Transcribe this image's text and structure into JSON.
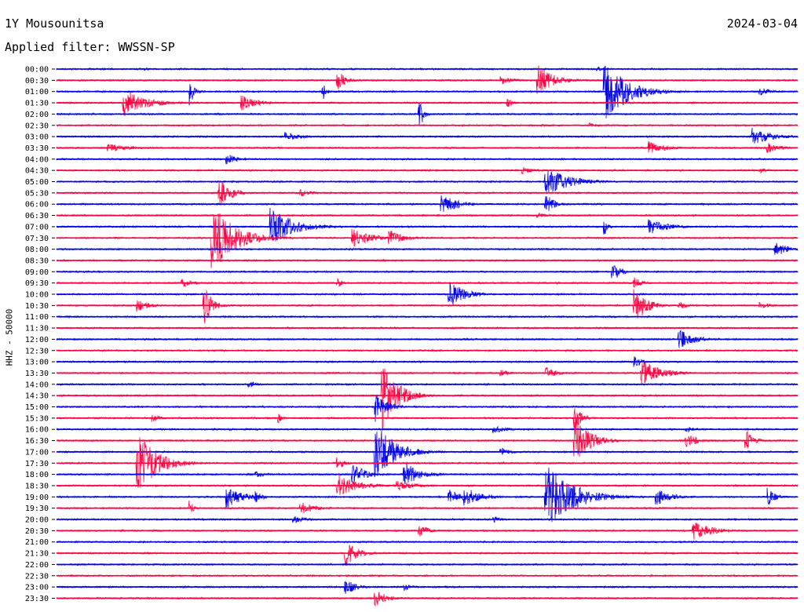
{
  "header": {
    "station": "1Y Mousounitsa",
    "date": "2024-03-04",
    "filter_text": "Applied filter: WWSSN-SP"
  },
  "chart_data": {
    "type": "line",
    "title": "1Y Mousounitsa",
    "ylabel": "HHZ - 50000",
    "colors": [
      "#0000e6",
      "#ff0040"
    ],
    "rows": [
      "00:00",
      "00:30",
      "01:00",
      "01:30",
      "02:00",
      "02:30",
      "03:00",
      "03:30",
      "04:00",
      "04:30",
      "05:00",
      "05:30",
      "06:00",
      "06:30",
      "07:00",
      "07:30",
      "08:00",
      "08:30",
      "09:00",
      "09:30",
      "10:00",
      "10:30",
      "11:00",
      "11:30",
      "12:00",
      "12:30",
      "13:00",
      "13:30",
      "14:00",
      "14:30",
      "15:00",
      "15:30",
      "16:00",
      "16:30",
      "17:00",
      "17:30",
      "18:00",
      "18:30",
      "19:00",
      "19:30",
      "20:00",
      "20:30",
      "21:00",
      "21:30",
      "22:00",
      "22:30",
      "23:00",
      "23:30"
    ],
    "events": [
      {
        "row": 0,
        "x": 0.12,
        "amp": 2,
        "dur": 0.02
      },
      {
        "row": 0,
        "x": 0.73,
        "amp": 3,
        "dur": 0.03
      },
      {
        "row": 1,
        "x": 0.38,
        "amp": 13,
        "dur": 0.02
      },
      {
        "row": 1,
        "x": 0.6,
        "amp": 6,
        "dur": 0.03
      },
      {
        "row": 1,
        "x": 0.65,
        "amp": 20,
        "dur": 0.04
      },
      {
        "row": 2,
        "x": 0.18,
        "amp": 20,
        "dur": 0.01
      },
      {
        "row": 2,
        "x": 0.36,
        "amp": 10,
        "dur": 0.01
      },
      {
        "row": 2,
        "x": 0.74,
        "amp": 40,
        "dur": 0.06
      },
      {
        "row": 2,
        "x": 0.95,
        "amp": 5,
        "dur": 0.03
      },
      {
        "row": 3,
        "x": 0.09,
        "amp": 18,
        "dur": 0.06
      },
      {
        "row": 3,
        "x": 0.25,
        "amp": 10,
        "dur": 0.04
      },
      {
        "row": 3,
        "x": 0.61,
        "amp": 7,
        "dur": 0.01
      },
      {
        "row": 4,
        "x": 0.49,
        "amp": 22,
        "dur": 0.01
      },
      {
        "row": 5,
        "x": 0.72,
        "amp": 4,
        "dur": 0.02
      },
      {
        "row": 6,
        "x": 0.31,
        "amp": 6,
        "dur": 0.04
      },
      {
        "row": 6,
        "x": 0.94,
        "amp": 12,
        "dur": 0.05
      },
      {
        "row": 7,
        "x": 0.07,
        "amp": 5,
        "dur": 0.06
      },
      {
        "row": 7,
        "x": 0.8,
        "amp": 9,
        "dur": 0.04
      },
      {
        "row": 7,
        "x": 0.96,
        "amp": 7,
        "dur": 0.03
      },
      {
        "row": 8,
        "x": 0.23,
        "amp": 7,
        "dur": 0.03
      },
      {
        "row": 9,
        "x": 0.63,
        "amp": 5,
        "dur": 0.03
      },
      {
        "row": 9,
        "x": 0.95,
        "amp": 4,
        "dur": 0.02
      },
      {
        "row": 10,
        "x": 0.66,
        "amp": 20,
        "dur": 0.06
      },
      {
        "row": 11,
        "x": 0.22,
        "amp": 18,
        "dur": 0.03
      },
      {
        "row": 11,
        "x": 0.33,
        "amp": 5,
        "dur": 0.03
      },
      {
        "row": 12,
        "x": 0.52,
        "amp": 14,
        "dur": 0.04
      },
      {
        "row": 12,
        "x": 0.66,
        "amp": 15,
        "dur": 0.02
      },
      {
        "row": 13,
        "x": 0.65,
        "amp": 4,
        "dur": 0.02
      },
      {
        "row": 14,
        "x": 0.29,
        "amp": 25,
        "dur": 0.06
      },
      {
        "row": 14,
        "x": 0.74,
        "amp": 10,
        "dur": 0.01
      },
      {
        "row": 14,
        "x": 0.8,
        "amp": 10,
        "dur": 0.05
      },
      {
        "row": 15,
        "x": 0.21,
        "amp": 45,
        "dur": 0.06
      },
      {
        "row": 15,
        "x": 0.4,
        "amp": 12,
        "dur": 0.05
      },
      {
        "row": 15,
        "x": 0.45,
        "amp": 10,
        "dur": 0.04
      },
      {
        "row": 16,
        "x": 0.97,
        "amp": 9,
        "dur": 0.04
      },
      {
        "row": 18,
        "x": 0.75,
        "amp": 15,
        "dur": 0.02
      },
      {
        "row": 19,
        "x": 0.17,
        "amp": 6,
        "dur": 0.03
      },
      {
        "row": 19,
        "x": 0.38,
        "amp": 6,
        "dur": 0.01
      },
      {
        "row": 19,
        "x": 0.78,
        "amp": 8,
        "dur": 0.02
      },
      {
        "row": 20,
        "x": 0.53,
        "amp": 18,
        "dur": 0.04
      },
      {
        "row": 21,
        "x": 0.11,
        "amp": 8,
        "dur": 0.03
      },
      {
        "row": 21,
        "x": 0.2,
        "amp": 25,
        "dur": 0.02
      },
      {
        "row": 21,
        "x": 0.78,
        "amp": 25,
        "dur": 0.03
      },
      {
        "row": 21,
        "x": 0.84,
        "amp": 5,
        "dur": 0.03
      },
      {
        "row": 21,
        "x": 0.95,
        "amp": 4,
        "dur": 0.03
      },
      {
        "row": 24,
        "x": 0.84,
        "amp": 14,
        "dur": 0.04
      },
      {
        "row": 26,
        "x": 0.78,
        "amp": 10,
        "dur": 0.02
      },
      {
        "row": 27,
        "x": 0.6,
        "amp": 5,
        "dur": 0.02
      },
      {
        "row": 27,
        "x": 0.66,
        "amp": 8,
        "dur": 0.03
      },
      {
        "row": 27,
        "x": 0.79,
        "amp": 16,
        "dur": 0.05
      },
      {
        "row": 28,
        "x": 0.26,
        "amp": 5,
        "dur": 0.02
      },
      {
        "row": 29,
        "x": 0.44,
        "amp": 45,
        "dur": 0.04
      },
      {
        "row": 30,
        "x": 0.43,
        "amp": 20,
        "dur": 0.03
      },
      {
        "row": 31,
        "x": 0.13,
        "amp": 5,
        "dur": 0.02
      },
      {
        "row": 31,
        "x": 0.3,
        "amp": 6,
        "dur": 0.01
      },
      {
        "row": 31,
        "x": 0.7,
        "amp": 15,
        "dur": 0.02
      },
      {
        "row": 32,
        "x": 0.59,
        "amp": 6,
        "dur": 0.03
      },
      {
        "row": 32,
        "x": 0.85,
        "amp": 4,
        "dur": 0.03
      },
      {
        "row": 33,
        "x": 0.7,
        "amp": 30,
        "dur": 0.04
      },
      {
        "row": 33,
        "x": 0.85,
        "amp": 10,
        "dur": 0.03
      },
      {
        "row": 33,
        "x": 0.93,
        "amp": 15,
        "dur": 0.02
      },
      {
        "row": 34,
        "x": 0.43,
        "amp": 40,
        "dur": 0.05
      },
      {
        "row": 34,
        "x": 0.6,
        "amp": 5,
        "dur": 0.03
      },
      {
        "row": 35,
        "x": 0.11,
        "amp": 40,
        "dur": 0.05
      },
      {
        "row": 35,
        "x": 0.38,
        "amp": 8,
        "dur": 0.02
      },
      {
        "row": 36,
        "x": 0.27,
        "amp": 5,
        "dur": 0.03
      },
      {
        "row": 36,
        "x": 0.4,
        "amp": 16,
        "dur": 0.03
      },
      {
        "row": 36,
        "x": 0.47,
        "amp": 16,
        "dur": 0.04
      },
      {
        "row": 37,
        "x": 0.38,
        "amp": 16,
        "dur": 0.05
      },
      {
        "row": 37,
        "x": 0.46,
        "amp": 7,
        "dur": 0.05
      },
      {
        "row": 38,
        "x": 0.23,
        "amp": 15,
        "dur": 0.04
      },
      {
        "row": 38,
        "x": 0.27,
        "amp": 7,
        "dur": 0.02
      },
      {
        "row": 38,
        "x": 0.53,
        "amp": 10,
        "dur": 0.03
      },
      {
        "row": 38,
        "x": 0.55,
        "amp": 14,
        "dur": 0.04
      },
      {
        "row": 38,
        "x": 0.66,
        "amp": 45,
        "dur": 0.07
      },
      {
        "row": 38,
        "x": 0.81,
        "amp": 10,
        "dur": 0.04
      },
      {
        "row": 38,
        "x": 0.96,
        "amp": 12,
        "dur": 0.02
      },
      {
        "row": 39,
        "x": 0.18,
        "amp": 10,
        "dur": 0.01
      },
      {
        "row": 39,
        "x": 0.33,
        "amp": 8,
        "dur": 0.04
      },
      {
        "row": 40,
        "x": 0.32,
        "amp": 6,
        "dur": 0.03
      },
      {
        "row": 40,
        "x": 0.59,
        "amp": 5,
        "dur": 0.02
      },
      {
        "row": 41,
        "x": 0.49,
        "amp": 10,
        "dur": 0.02
      },
      {
        "row": 41,
        "x": 0.86,
        "amp": 12,
        "dur": 0.05
      },
      {
        "row": 43,
        "x": 0.39,
        "amp": 18,
        "dur": 0.03
      },
      {
        "row": 46,
        "x": 0.39,
        "amp": 10,
        "dur": 0.03
      },
      {
        "row": 46,
        "x": 0.47,
        "amp": 5,
        "dur": 0.02
      },
      {
        "row": 47,
        "x": 0.43,
        "amp": 12,
        "dur": 0.03
      }
    ]
  }
}
